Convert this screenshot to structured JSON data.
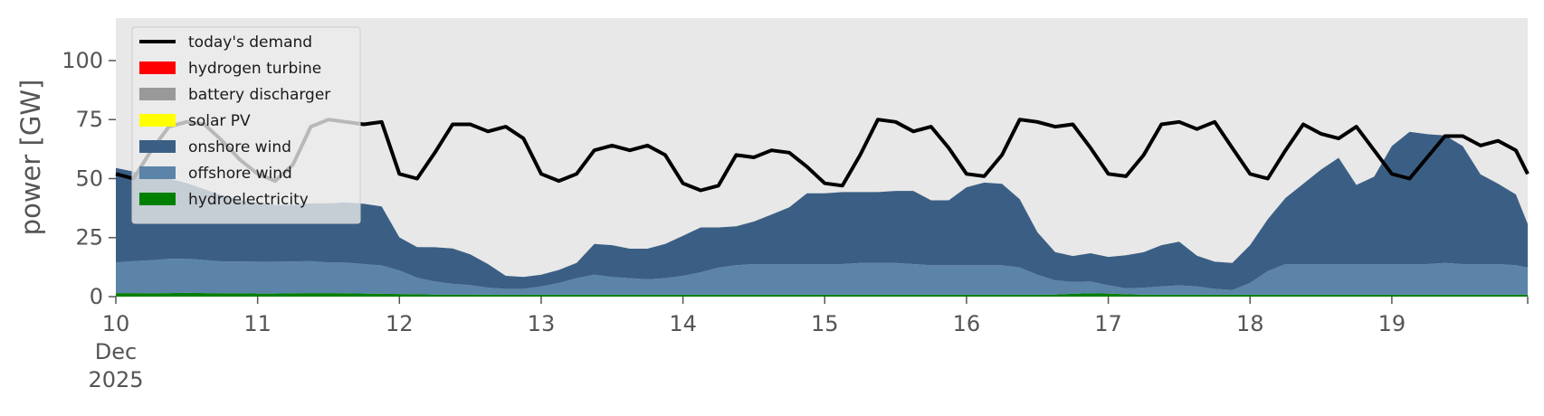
{
  "chart_data": {
    "type": "area",
    "ylabel": "power [GW]",
    "xlabel": "",
    "ylim": [
      0,
      118
    ],
    "xlim": [
      "2025-12-10 00:00",
      "2025-12-19 23:00"
    ],
    "y_ticks": [
      0,
      25,
      50,
      75,
      100
    ],
    "x_ticks": [
      {
        "date": "2025-12-10 00:00",
        "label": [
          "10",
          "Dec",
          "2025"
        ]
      },
      {
        "date": "2025-12-11 00:00",
        "label": [
          "11"
        ]
      },
      {
        "date": "2025-12-12 00:00",
        "label": [
          "12"
        ]
      },
      {
        "date": "2025-12-13 00:00",
        "label": [
          "13"
        ]
      },
      {
        "date": "2025-12-14 00:00",
        "label": [
          "14"
        ]
      },
      {
        "date": "2025-12-15 00:00",
        "label": [
          "15"
        ]
      },
      {
        "date": "2025-12-16 00:00",
        "label": [
          "16"
        ]
      },
      {
        "date": "2025-12-17 00:00",
        "label": [
          "17"
        ]
      },
      {
        "date": "2025-12-18 00:00",
        "label": [
          "18"
        ]
      },
      {
        "date": "2025-12-19 00:00",
        "label": [
          "19"
        ]
      }
    ],
    "grid": false,
    "background": "#e8e8e8",
    "legend_position": "top-left",
    "legend": [
      {
        "name": "today's demand",
        "color": "#000000",
        "kind": "line"
      },
      {
        "name": "hydrogen turbine",
        "color": "#ff0000",
        "kind": "area"
      },
      {
        "name": "battery discharger",
        "color": "#999999",
        "kind": "area"
      },
      {
        "name": "solar PV",
        "color": "#ffff00",
        "kind": "area"
      },
      {
        "name": "onshore wind",
        "color": "#3b5f84",
        "kind": "area"
      },
      {
        "name": "offshore wind",
        "color": "#5b84a8",
        "kind": "area"
      },
      {
        "name": "hydroelectricity",
        "color": "#008000",
        "kind": "area"
      }
    ],
    "x": [
      "2025-12-10 00:00",
      "2025-12-10 03:00",
      "2025-12-10 06:00",
      "2025-12-10 09:00",
      "2025-12-10 12:00",
      "2025-12-10 15:00",
      "2025-12-10 18:00",
      "2025-12-10 21:00",
      "2025-12-11 00:00",
      "2025-12-11 03:00",
      "2025-12-11 06:00",
      "2025-12-11 09:00",
      "2025-12-11 12:00",
      "2025-12-11 15:00",
      "2025-12-11 18:00",
      "2025-12-11 21:00",
      "2025-12-12 00:00",
      "2025-12-12 03:00",
      "2025-12-12 06:00",
      "2025-12-12 09:00",
      "2025-12-12 12:00",
      "2025-12-12 15:00",
      "2025-12-12 18:00",
      "2025-12-12 21:00",
      "2025-12-13 00:00",
      "2025-12-13 03:00",
      "2025-12-13 06:00",
      "2025-12-13 09:00",
      "2025-12-13 12:00",
      "2025-12-13 15:00",
      "2025-12-13 18:00",
      "2025-12-13 21:00",
      "2025-12-14 00:00",
      "2025-12-14 03:00",
      "2025-12-14 06:00",
      "2025-12-14 09:00",
      "2025-12-14 12:00",
      "2025-12-14 15:00",
      "2025-12-14 18:00",
      "2025-12-14 21:00",
      "2025-12-15 00:00",
      "2025-12-15 03:00",
      "2025-12-15 06:00",
      "2025-12-15 09:00",
      "2025-12-15 12:00",
      "2025-12-15 15:00",
      "2025-12-15 18:00",
      "2025-12-15 21:00",
      "2025-12-16 00:00",
      "2025-12-16 03:00",
      "2025-12-16 06:00",
      "2025-12-16 09:00",
      "2025-12-16 12:00",
      "2025-12-16 15:00",
      "2025-12-16 18:00",
      "2025-12-16 21:00",
      "2025-12-17 00:00",
      "2025-12-17 03:00",
      "2025-12-17 06:00",
      "2025-12-17 09:00",
      "2025-12-17 12:00",
      "2025-12-17 15:00",
      "2025-12-17 18:00",
      "2025-12-17 21:00",
      "2025-12-18 00:00",
      "2025-12-18 03:00",
      "2025-12-18 06:00",
      "2025-12-18 09:00",
      "2025-12-18 12:00",
      "2025-12-18 15:00",
      "2025-12-18 18:00",
      "2025-12-18 21:00",
      "2025-12-19 00:00",
      "2025-12-19 03:00",
      "2025-12-19 06:00",
      "2025-12-19 09:00",
      "2025-12-19 12:00",
      "2025-12-19 15:00",
      "2025-12-19 18:00",
      "2025-12-19 21:00",
      "2025-12-19 23:00"
    ],
    "series": [
      {
        "name": "hydroelectricity",
        "color": "#008000",
        "values": [
          1.5,
          1.5,
          1.4,
          1.5,
          1.6,
          1.5,
          1.4,
          1.4,
          1.3,
          1.3,
          1.4,
          1.5,
          1.5,
          1.4,
          1.3,
          1.2,
          1.1,
          1.0,
          0.9,
          0.9,
          0.9,
          0.8,
          0.8,
          0.8,
          0.8,
          0.8,
          0.8,
          0.8,
          0.8,
          0.8,
          0.8,
          0.8,
          0.8,
          0.8,
          0.8,
          0.8,
          0.8,
          0.8,
          0.8,
          0.8,
          0.8,
          0.8,
          0.8,
          0.8,
          0.8,
          0.8,
          0.8,
          0.8,
          0.8,
          0.8,
          0.8,
          0.8,
          0.8,
          0.9,
          1.2,
          1.4,
          1.3,
          1.0,
          0.8,
          0.8,
          0.8,
          0.8,
          0.8,
          0.8,
          0.8,
          0.8,
          0.8,
          0.8,
          0.8,
          0.8,
          0.8,
          0.8,
          0.8,
          0.8,
          0.8,
          0.8,
          0.8,
          0.8,
          0.8,
          0.8,
          0.8
        ]
      },
      {
        "name": "offshore wind",
        "color": "#5b84a8",
        "values": [
          13,
          13.5,
          14,
          14.5,
          14.5,
          14,
          13.5,
          13.5,
          13.5,
          13.5,
          13.5,
          13.5,
          13,
          13,
          12.5,
          12,
          10,
          7,
          5.5,
          4.5,
          4,
          3,
          2.5,
          2.5,
          3.5,
          5,
          7,
          8.5,
          7.5,
          7,
          6.5,
          7,
          8,
          9.5,
          11.5,
          12.5,
          13,
          13,
          13,
          13,
          13,
          13,
          13.5,
          13.5,
          13.5,
          13,
          12.5,
          12.5,
          12.5,
          12.5,
          12.5,
          11.5,
          8.5,
          6,
          5,
          5,
          3.5,
          2.5,
          3,
          3.5,
          4,
          3.5,
          2.5,
          2,
          5,
          10,
          13,
          13,
          13,
          13,
          13,
          13,
          13,
          13,
          13,
          13.5,
          13,
          13,
          13,
          12.5,
          11.5
        ]
      },
      {
        "name": "onshore wind",
        "color": "#3b5f84",
        "values": [
          40,
          38,
          36,
          34,
          32,
          30,
          28,
          26,
          25,
          24,
          24,
          24.5,
          25,
          25.5,
          25.5,
          25,
          14,
          13,
          14.5,
          15,
          13,
          10,
          5.5,
          5,
          5,
          5.5,
          6.5,
          13,
          13.5,
          12.5,
          13,
          14.5,
          17,
          19,
          17,
          16.5,
          18,
          21,
          24,
          30,
          30,
          30.5,
          30,
          30,
          30.5,
          31,
          27.5,
          27.5,
          33,
          35,
          34.5,
          29,
          18,
          12,
          11,
          12,
          12,
          14,
          15,
          17.5,
          18.5,
          13,
          11.5,
          11.5,
          16,
          22,
          28,
          34,
          40,
          45,
          33.5,
          37,
          50,
          56,
          55,
          54,
          50,
          38,
          34,
          30,
          18.5
        ]
      },
      {
        "name": "solar PV",
        "color": "#ffff00",
        "values": [
          0,
          0,
          0,
          0,
          0,
          0,
          0,
          0,
          0,
          0,
          0,
          0,
          0,
          0,
          0,
          0,
          0,
          0,
          0,
          0,
          0,
          0,
          0,
          0,
          0,
          0,
          0,
          0,
          0,
          0,
          0,
          0,
          0,
          0,
          0,
          0,
          0,
          0,
          0,
          0,
          0,
          0,
          0,
          0,
          0,
          0,
          0,
          0,
          0,
          0,
          0,
          0,
          0,
          0,
          0,
          0,
          0,
          0,
          0,
          0,
          0,
          0,
          0,
          0,
          0,
          0,
          0,
          0,
          0,
          0,
          0,
          0,
          0,
          0,
          0,
          0,
          0,
          0,
          0,
          0,
          0
        ]
      },
      {
        "name": "battery discharger",
        "color": "#999999",
        "values": [
          0,
          0,
          0,
          0,
          0,
          0,
          0,
          0,
          0,
          0,
          0,
          0,
          0,
          0,
          0,
          0,
          0,
          0,
          0,
          0,
          0,
          0,
          0,
          0,
          0,
          0,
          0,
          0,
          0,
          0,
          0,
          0,
          0,
          0,
          0,
          0,
          0,
          0,
          0,
          0,
          0,
          0,
          0,
          0,
          0,
          0,
          0,
          0,
          0,
          0,
          0,
          0,
          0,
          0,
          0,
          0,
          0,
          0,
          0,
          0,
          0,
          0,
          0,
          0,
          0,
          0,
          0,
          0,
          0,
          0,
          0,
          0,
          0,
          0,
          0,
          0,
          0,
          0,
          0,
          0,
          0
        ]
      },
      {
        "name": "hydrogen turbine",
        "color": "#ff0000",
        "values": [
          0,
          0,
          0,
          0,
          0,
          0,
          0,
          0,
          0,
          0,
          0,
          0,
          0,
          0,
          0,
          0,
          0,
          0,
          0,
          0,
          0,
          0,
          0,
          0,
          0,
          0,
          0,
          0,
          0,
          0,
          0,
          0,
          0,
          0,
          0,
          0,
          0,
          0,
          0,
          0,
          0,
          0,
          0,
          0,
          0,
          0,
          0,
          0,
          0,
          0,
          0,
          0,
          0,
          0,
          0,
          0,
          0,
          0,
          0,
          0,
          0,
          0,
          0,
          0,
          0,
          0,
          0,
          0,
          0,
          0,
          0,
          0,
          0,
          0,
          0,
          0,
          0,
          0,
          0,
          0,
          0
        ]
      },
      {
        "name": "today's demand",
        "color": "#000000",
        "kind": "line",
        "values": [
          52,
          50,
          62,
          72,
          74,
          73,
          66,
          58,
          52,
          49,
          56,
          72,
          75,
          74,
          73,
          74,
          52,
          50,
          61,
          73,
          73,
          70,
          72,
          67,
          52,
          49,
          52,
          62,
          64,
          62,
          64,
          60,
          48,
          45,
          47,
          60,
          59,
          62,
          61,
          55,
          48,
          47,
          60,
          75,
          74,
          70,
          72,
          63,
          52,
          51,
          60,
          75,
          74,
          72,
          73,
          63,
          52,
          51,
          60,
          73,
          74,
          71,
          74,
          63,
          52,
          50,
          62,
          73,
          69,
          67,
          72,
          62,
          52,
          50,
          59,
          68,
          68,
          64,
          66,
          62,
          52
        ]
      }
    ]
  }
}
